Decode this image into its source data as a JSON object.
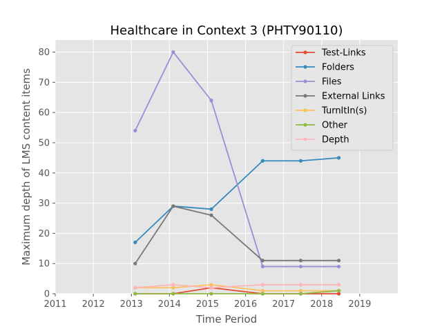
{
  "chart_data": {
    "type": "line",
    "title": "Healthcare in Context 3 (PHTY90110)",
    "xlabel": "Time Period",
    "ylabel": "Maximum depth of LMS content items",
    "xlim": [
      2011,
      2020
    ],
    "ylim": [
      0,
      84
    ],
    "x_ticks": [
      "2011",
      "2012",
      "2013",
      "2014",
      "2015",
      "2016",
      "2017",
      "2018",
      "2019"
    ],
    "y_ticks": [
      "0",
      "10",
      "20",
      "30",
      "40",
      "50",
      "60",
      "70",
      "80"
    ],
    "grid": true,
    "legend_position": "top-right",
    "x": [
      2013.1,
      2014.1,
      2015.1,
      2016.45,
      2017.45,
      2018.45
    ],
    "series": [
      {
        "name": "Test-Links",
        "color": "#E24A33",
        "values": [
          0,
          0,
          2,
          0,
          0,
          0
        ]
      },
      {
        "name": "Folders",
        "color": "#348ABD",
        "values": [
          17,
          29,
          28,
          44,
          44,
          45
        ]
      },
      {
        "name": "Files",
        "color": "#988ED5",
        "values": [
          54,
          80,
          64,
          9,
          9,
          9
        ]
      },
      {
        "name": "External Links",
        "color": "#777777",
        "values": [
          10,
          29,
          26,
          11,
          11,
          11
        ]
      },
      {
        "name": "TurnItIn(s)",
        "color": "#FBC15E",
        "values": [
          2,
          2,
          3,
          1,
          1,
          1
        ]
      },
      {
        "name": "Other",
        "color": "#8EBA42",
        "values": [
          0,
          0,
          0,
          0,
          0,
          1
        ]
      },
      {
        "name": "Depth",
        "color": "#FFB5B8",
        "values": [
          2,
          3,
          2,
          3,
          3,
          3
        ]
      }
    ]
  }
}
